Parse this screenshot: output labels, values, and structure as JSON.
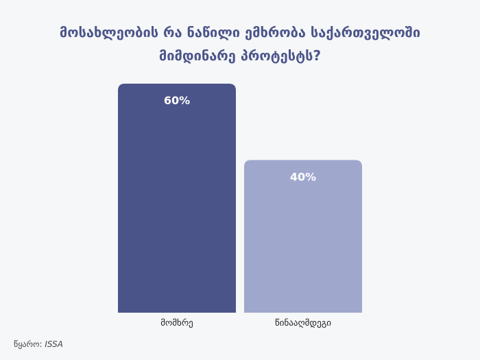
{
  "title": {
    "line1": "მოსახლეობის რა ნაწილი ემხრობა საქართველოში",
    "line2": "მიმდინარე პროტესტს?"
  },
  "chart_data": {
    "type": "bar",
    "categories": [
      "მომხრე",
      "წინააღმდეგი"
    ],
    "values": [
      60,
      40
    ],
    "value_labels": [
      "60%",
      "40%"
    ],
    "colors": [
      "#4b5489",
      "#a0a7cc"
    ],
    "ylim": [
      0,
      60
    ],
    "grid": false,
    "legend": "none"
  },
  "source": {
    "label": "წყარო:",
    "name": "ISSA"
  }
}
